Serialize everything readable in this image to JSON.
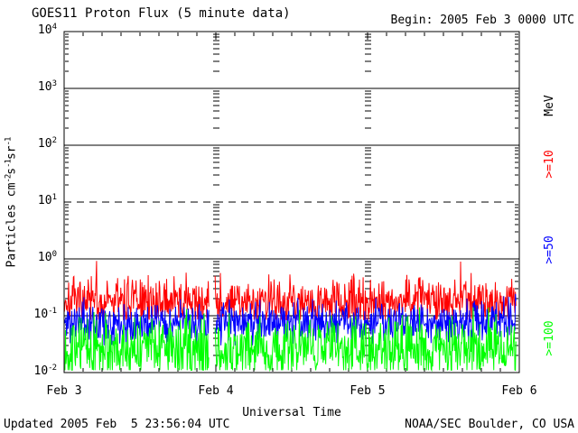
{
  "header": {
    "begin_label": "Begin: 2005 Feb 3 0000 UTC"
  },
  "footer": {
    "updated": "Updated 2005 Feb  5 23:56:04 UTC",
    "credit": "NOAA/SEC Boulder, CO USA"
  },
  "chart_data": {
    "type": "line",
    "title": "GOES11 Proton Flux (5 minute data)",
    "xlabel": "Universal Time",
    "ylabel": "Particles cm-2 s-1 sr-1",
    "ylabel_segments": [
      [
        "text",
        "Particles cm"
      ],
      [
        "sup",
        "-2"
      ],
      [
        "text",
        "s"
      ],
      [
        "sup",
        "-1"
      ],
      [
        "text",
        "sr"
      ],
      [
        "sup",
        "-1"
      ]
    ],
    "right_axis_unit": "MeV",
    "x_ticks": [
      "Feb 3",
      "Feb 4",
      "Feb 5",
      "Feb 6"
    ],
    "x_range_days": 3,
    "x_minor_tick_hours": 3,
    "y_scale": "log",
    "ylim": [
      0.01,
      10000
    ],
    "y_tick_exponents": [
      4,
      3,
      2,
      1,
      0,
      -1,
      -2
    ],
    "gridlines": {
      "solid_at": [
        1000,
        100,
        1,
        0.1
      ],
      "dashed_at": [
        10
      ]
    },
    "axis_color": "#000000",
    "background": "#ffffff",
    "cadence_minutes": 5,
    "data_start_day": 0.002,
    "data_end_day": 2.978,
    "data_gaps_days": [
      [
        0.955,
        0.992
      ]
    ],
    "series": [
      {
        "name": ">=10",
        "threshold_mev": 10,
        "color": "#ff0000",
        "typical_flux": 0.17,
        "approx_range": [
          0.09,
          0.9
        ],
        "log10_mean": -0.74,
        "log10_sigma": 0.21,
        "clip": [
          0.085,
          0.92
        ],
        "spike_prob": 0.012,
        "spike_boost": 0.45,
        "seed": 7
      },
      {
        "name": ">=50",
        "threshold_mev": 50,
        "color": "#0000ff",
        "typical_flux": 0.075,
        "approx_range": [
          0.03,
          0.25
        ],
        "log10_mean": -1.12,
        "log10_sigma": 0.18,
        "clip": [
          0.03,
          0.28
        ],
        "spike_prob": 0.008,
        "spike_boost": 0.3,
        "seed": 11
      },
      {
        "name": ">=100",
        "threshold_mev": 100,
        "color": "#00ff00",
        "typical_flux": 0.03,
        "approx_range": [
          0.011,
          0.12
        ],
        "log10_mean": -1.58,
        "log10_sigma": 0.28,
        "clip": [
          0.011,
          0.14
        ],
        "spike_prob": 0.0,
        "spike_boost": 0,
        "seed": 13
      }
    ]
  }
}
